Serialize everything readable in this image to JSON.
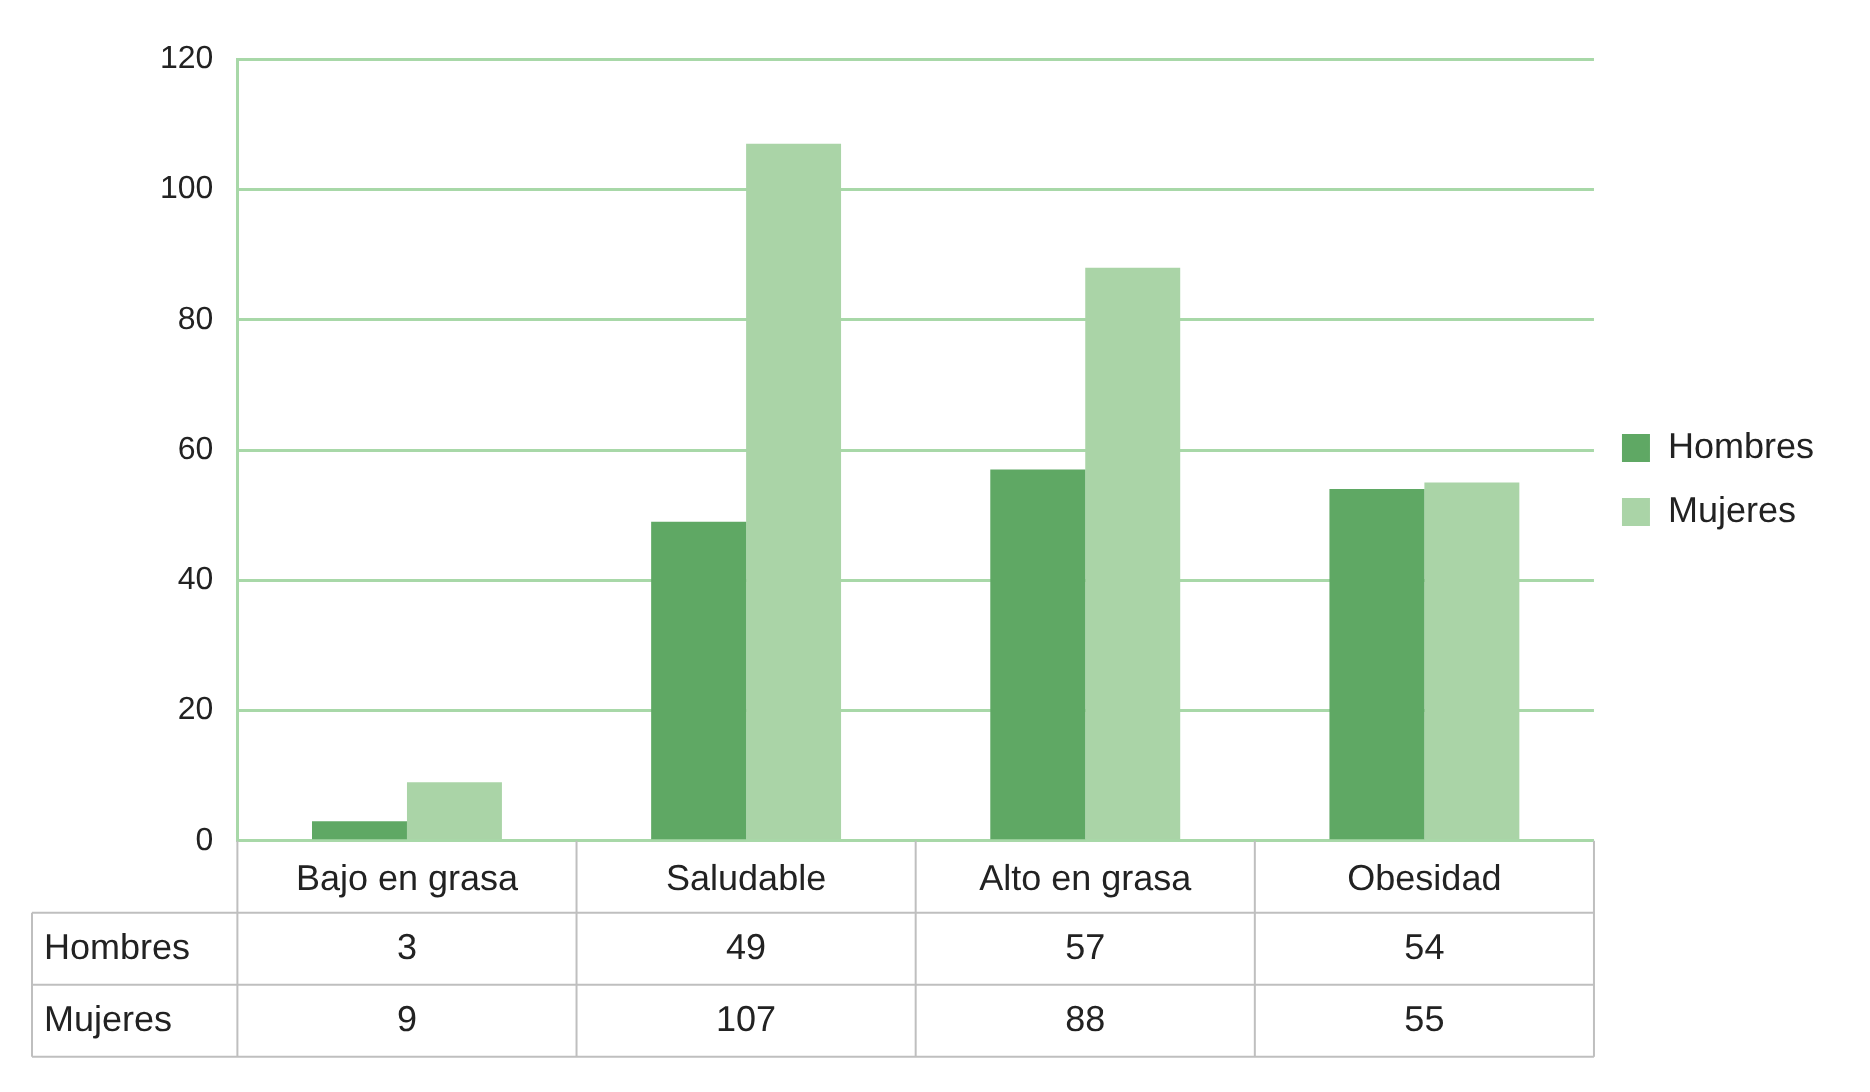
{
  "chart_data": {
    "type": "bar",
    "categories": [
      "Bajo en grasa",
      "Saludable",
      "Alto en grasa",
      "Obesidad"
    ],
    "series": [
      {
        "name": "Hombres",
        "color": "#5fa864",
        "values": [
          3,
          49,
          57,
          54
        ]
      },
      {
        "name": "Mujeres",
        "color": "#aad4a7",
        "values": [
          9,
          107,
          88,
          55
        ]
      }
    ],
    "ylim": [
      0,
      120
    ],
    "yticks": [
      0,
      20,
      40,
      60,
      80,
      100,
      120
    ],
    "grid": "y",
    "legend": "right",
    "data_labels": true
  }
}
